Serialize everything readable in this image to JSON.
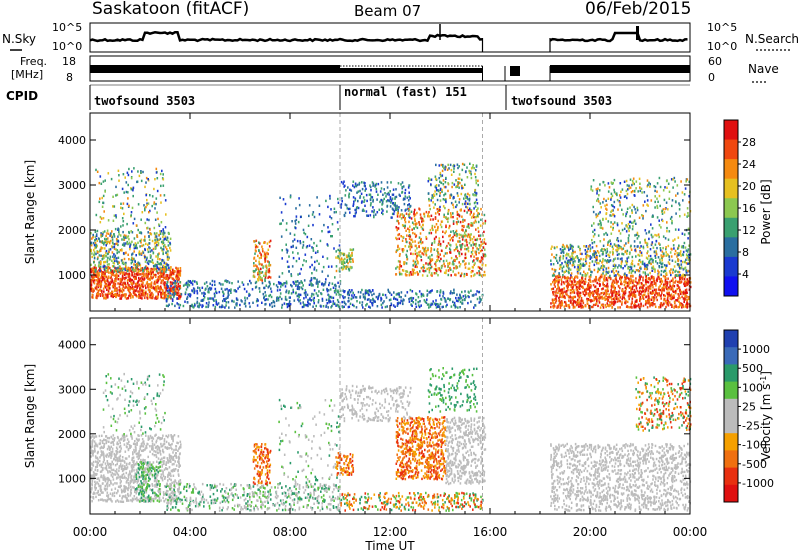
{
  "header": {
    "station": "Saskatoon (fitACF)",
    "beam": "Beam 07",
    "date": "06/Feb/2015"
  },
  "top_panels": {
    "nsky": {
      "left_label": "N.Sky",
      "left_ticks": [
        "10^5",
        "10^0"
      ],
      "right_ticks": [
        "10^5",
        "10^0"
      ],
      "right_label": "N.Search"
    },
    "freq": {
      "left_label_line1": "Freq.",
      "left_label_line2": "[MHz]",
      "left_ticks": [
        "18",
        "8"
      ],
      "right_ticks": [
        "60",
        "0"
      ],
      "right_label": "Nave"
    },
    "cpid": {
      "label": "CPID",
      "segments": [
        {
          "start_h": 0,
          "end_h": 10,
          "text": "twofsound 3503"
        },
        {
          "start_h": 10,
          "end_h": 16.6,
          "text": "normal (fast) 151"
        },
        {
          "start_h": 16.6,
          "end_h": 24,
          "text": "twofsound 3503"
        }
      ]
    }
  },
  "chart_data": [
    {
      "type": "heatmap",
      "name": "power",
      "ylabel": "Slant Range [km]",
      "ylim": [
        200,
        4600
      ],
      "yticks": [
        "1000",
        "2000",
        "3000",
        "4000"
      ],
      "xlim_hours": [
        0,
        24
      ],
      "colorbar": {
        "label": "Power [dB]",
        "ticks": [
          "28",
          "24",
          "20",
          "16",
          "12",
          "8",
          "4"
        ],
        "colors": [
          "#e01010",
          "#f04810",
          "#f58a10",
          "#e6c020",
          "#8cc850",
          "#3aa070",
          "#2a6ea0",
          "#1a3ad0",
          "#1010f0"
        ]
      }
    },
    {
      "type": "heatmap",
      "name": "velocity",
      "ylabel": "Slant Range [km]",
      "ylim": [
        200,
        4600
      ],
      "yticks": [
        "1000",
        "2000",
        "3000",
        "4000"
      ],
      "xlim_hours": [
        0,
        24
      ],
      "colorbar": {
        "label": "Velocity [m s^-1]",
        "ticks": [
          "1000",
          "500",
          "100",
          "25",
          "-25",
          "-100",
          "-500",
          "-1000"
        ],
        "colors": [
          "#2040b0",
          "#3a6ab8",
          "#2a9a6a",
          "#5ac040",
          "#bcbcbc",
          "#bcbcbc",
          "#f5a000",
          "#f07010",
          "#e83010",
          "#e01010"
        ]
      }
    }
  ],
  "xaxis": {
    "ticks": [
      "00:00",
      "04:00",
      "08:00",
      "12:00",
      "16:00",
      "20:00",
      "00:00"
    ],
    "label": "Time UT"
  }
}
